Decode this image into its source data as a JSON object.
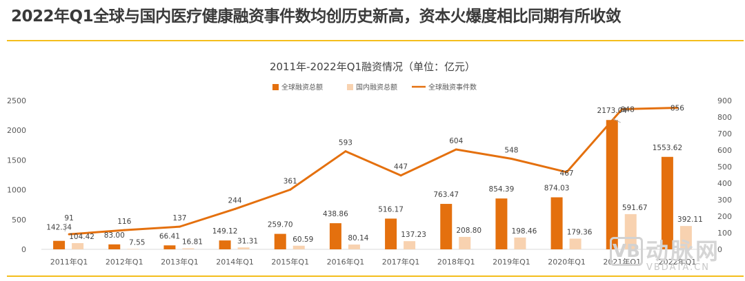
{
  "headline": "2022年Q1全球与国内医疗健康融资事件数均创历史新高，资本火爆度相比同期有所收敛",
  "colors": {
    "accent": "#f4bd1b",
    "global_amount": "#e4700e",
    "domestic_amount": "#f8d2b0",
    "event_count": "#e4700e"
  },
  "watermark": {
    "logo_letter": "VB",
    "chinese": "动脉网",
    "url": "VBDATA.CN"
  },
  "chart_data": {
    "type": "bar",
    "title": "2011年-2022年Q1融资情况（单位：亿元）",
    "categories": [
      "2011年Q1",
      "2012年Q1",
      "2013年Q1",
      "2014年Q1",
      "2015年Q1",
      "2016年Q1",
      "2017年Q1",
      "2018年Q1",
      "2019年Q1",
      "2020年Q1",
      "2021年Q1",
      "2022年Q1"
    ],
    "series": [
      {
        "name": "全球融资总额",
        "type": "bar",
        "axis": "left",
        "values": [
          142.34,
          83.0,
          66.41,
          149.12,
          259.7,
          438.86,
          516.17,
          763.47,
          854.39,
          874.03,
          2173.04,
          1553.62
        ],
        "labels": [
          "142.34",
          "83.00",
          "66.41",
          "149.12",
          "259.70",
          "438.86",
          "516.17",
          "763.47",
          "854.39",
          "874.03",
          "2173.04",
          "1553.62"
        ]
      },
      {
        "name": "国内融资总额",
        "type": "bar",
        "axis": "left",
        "values": [
          104.42,
          7.55,
          16.81,
          31.31,
          60.59,
          80.14,
          137.23,
          208.8,
          198.46,
          179.36,
          591.67,
          392.11
        ],
        "labels": [
          "104.42",
          "7.55",
          "16.81",
          "31.31",
          "60.59",
          "80.14",
          "137.23",
          "208.80",
          "198.46",
          "179.36",
          "591.67",
          "392.11"
        ]
      },
      {
        "name": "全球融资事件数",
        "type": "line",
        "axis": "right",
        "values": [
          91,
          116,
          137,
          244,
          361,
          593,
          447,
          604,
          548,
          467,
          848,
          856
        ],
        "labels": [
          "91",
          "116",
          "137",
          "244",
          "361",
          "593",
          "447",
          "604",
          "548",
          "467",
          "848",
          "856"
        ]
      }
    ],
    "y_left": {
      "min": 0,
      "max": 2500,
      "ticks": [
        "0",
        "500",
        "1000",
        "1500",
        "2000",
        "2500"
      ]
    },
    "y_right": {
      "min": 0,
      "max": 900,
      "ticks": [
        "0",
        "100",
        "200",
        "300",
        "400",
        "500",
        "600",
        "700",
        "800",
        "900"
      ]
    },
    "grid": false,
    "legend": "top-center"
  }
}
